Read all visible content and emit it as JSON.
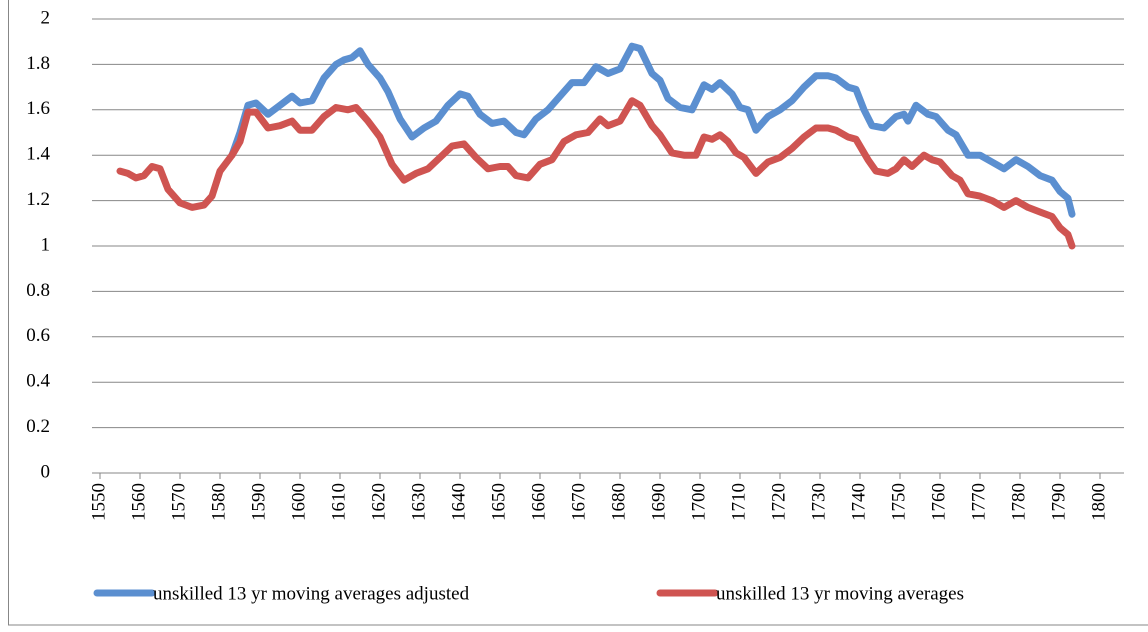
{
  "chart_data": {
    "type": "line",
    "xlim": [
      1548,
      1806
    ],
    "ylim": [
      0,
      2
    ],
    "xticks": [
      1550,
      1560,
      1570,
      1580,
      1590,
      1600,
      1610,
      1620,
      1630,
      1640,
      1650,
      1660,
      1670,
      1680,
      1690,
      1700,
      1710,
      1720,
      1730,
      1740,
      1750,
      1760,
      1770,
      1780,
      1790,
      1800
    ],
    "yticks": [
      0,
      0.2,
      0.4,
      0.6,
      0.8,
      1,
      1.2,
      1.4,
      1.6,
      1.8,
      2
    ],
    "grid": true,
    "legend": "bottom",
    "series": [
      {
        "name": "unskilled 13 yr moving averages adjusted",
        "color": "#5b8fd0",
        "x": [
          1583,
          1585,
          1587,
          1589,
          1592,
          1595,
          1598,
          1600,
          1603,
          1606,
          1609,
          1611,
          1613,
          1615,
          1617,
          1620,
          1622,
          1625,
          1628,
          1631,
          1634,
          1637,
          1640,
          1642,
          1645,
          1648,
          1651,
          1654,
          1656,
          1659,
          1662,
          1665,
          1668,
          1671,
          1674,
          1677,
          1680,
          1683,
          1685,
          1688,
          1690,
          1692,
          1695,
          1698,
          1701,
          1703,
          1705,
          1708,
          1710,
          1712,
          1714,
          1717,
          1720,
          1723,
          1726,
          1729,
          1732,
          1734,
          1737,
          1739,
          1741,
          1743,
          1746,
          1749,
          1751,
          1752,
          1754,
          1757,
          1759,
          1762,
          1764,
          1767,
          1770,
          1773,
          1776,
          1779,
          1782,
          1785,
          1788,
          1790,
          1792,
          1793
        ],
        "values": [
          1.4,
          1.5,
          1.62,
          1.63,
          1.58,
          1.62,
          1.66,
          1.63,
          1.64,
          1.74,
          1.8,
          1.82,
          1.83,
          1.86,
          1.8,
          1.74,
          1.68,
          1.56,
          1.48,
          1.52,
          1.55,
          1.62,
          1.67,
          1.66,
          1.58,
          1.54,
          1.55,
          1.5,
          1.49,
          1.56,
          1.6,
          1.66,
          1.72,
          1.72,
          1.79,
          1.76,
          1.78,
          1.88,
          1.87,
          1.76,
          1.73,
          1.65,
          1.61,
          1.6,
          1.71,
          1.69,
          1.72,
          1.67,
          1.61,
          1.6,
          1.51,
          1.57,
          1.6,
          1.64,
          1.7,
          1.75,
          1.75,
          1.74,
          1.7,
          1.69,
          1.6,
          1.53,
          1.52,
          1.57,
          1.58,
          1.55,
          1.62,
          1.58,
          1.57,
          1.51,
          1.49,
          1.4,
          1.4,
          1.37,
          1.34,
          1.38,
          1.35,
          1.31,
          1.29,
          1.24,
          1.21,
          1.14
        ]
      },
      {
        "name": "unskilled 13 yr moving averages",
        "color": "#cf5451",
        "x": [
          1555,
          1557,
          1559,
          1561,
          1563,
          1565,
          1567,
          1570,
          1573,
          1576,
          1578,
          1580,
          1583,
          1585,
          1587,
          1589,
          1592,
          1595,
          1598,
          1600,
          1603,
          1606,
          1609,
          1612,
          1614,
          1617,
          1620,
          1623,
          1626,
          1629,
          1632,
          1635,
          1638,
          1641,
          1644,
          1647,
          1650,
          1652,
          1654,
          1657,
          1660,
          1663,
          1666,
          1669,
          1672,
          1675,
          1677,
          1680,
          1683,
          1685,
          1688,
          1690,
          1693,
          1696,
          1699,
          1701,
          1703,
          1705,
          1707,
          1709,
          1711,
          1714,
          1717,
          1720,
          1723,
          1726,
          1729,
          1732,
          1734,
          1737,
          1739,
          1742,
          1744,
          1747,
          1749,
          1751,
          1753,
          1756,
          1758,
          1760,
          1763,
          1765,
          1767,
          1770,
          1773,
          1776,
          1779,
          1782,
          1785,
          1788,
          1790,
          1792,
          1793
        ],
        "values": [
          1.33,
          1.32,
          1.3,
          1.31,
          1.35,
          1.34,
          1.25,
          1.19,
          1.17,
          1.18,
          1.22,
          1.33,
          1.4,
          1.46,
          1.59,
          1.59,
          1.52,
          1.53,
          1.55,
          1.51,
          1.51,
          1.57,
          1.61,
          1.6,
          1.61,
          1.55,
          1.48,
          1.36,
          1.29,
          1.32,
          1.34,
          1.39,
          1.44,
          1.45,
          1.39,
          1.34,
          1.35,
          1.35,
          1.31,
          1.3,
          1.36,
          1.38,
          1.46,
          1.49,
          1.5,
          1.56,
          1.53,
          1.55,
          1.64,
          1.62,
          1.53,
          1.49,
          1.41,
          1.4,
          1.4,
          1.48,
          1.47,
          1.49,
          1.46,
          1.41,
          1.39,
          1.32,
          1.37,
          1.39,
          1.43,
          1.48,
          1.52,
          1.52,
          1.51,
          1.48,
          1.47,
          1.38,
          1.33,
          1.32,
          1.34,
          1.38,
          1.35,
          1.4,
          1.38,
          1.37,
          1.31,
          1.29,
          1.23,
          1.22,
          1.2,
          1.17,
          1.2,
          1.17,
          1.15,
          1.13,
          1.08,
          1.05,
          1.0
        ]
      }
    ]
  }
}
